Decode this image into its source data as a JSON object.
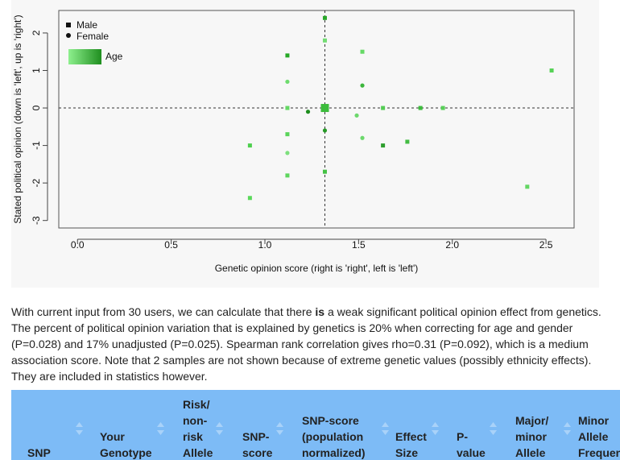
{
  "chart_data": {
    "type": "scatter",
    "xlabel": "Genetic opinion score (right is 'right', left is 'left')",
    "ylabel": "Stated political opinion (down is 'left', up is 'right')",
    "xlim": [
      -0.1,
      2.65
    ],
    "ylim": [
      -3.2,
      2.6
    ],
    "x_ticks": [
      0.0,
      0.5,
      1.0,
      1.5,
      2.0,
      2.5
    ],
    "x_tick_labels": [
      "0.0",
      "0.5",
      "1.0",
      "1.5",
      "2.0",
      "2.5"
    ],
    "y_ticks": [
      -3,
      -2,
      -1,
      0,
      1,
      2
    ],
    "y_tick_labels": [
      "-3",
      "-2",
      "-1",
      "0",
      "1",
      "2"
    ],
    "reference_lines": {
      "x": 1.32,
      "y": 0
    },
    "legend": {
      "position": "top-left",
      "items": [
        {
          "label": "Male",
          "symbol": "square"
        },
        {
          "label": "Female",
          "symbol": "circle"
        }
      ],
      "gradient_label": "Age"
    },
    "points": [
      {
        "x": 0.92,
        "y": -1.0,
        "shape": "square",
        "color": "#4ecf4e"
      },
      {
        "x": 0.92,
        "y": -2.4,
        "shape": "square",
        "color": "#5ad85a"
      },
      {
        "x": 1.12,
        "y": 1.4,
        "shape": "square",
        "color": "#27a927"
      },
      {
        "x": 1.12,
        "y": 0.7,
        "shape": "circle",
        "color": "#6edc6e"
      },
      {
        "x": 1.12,
        "y": 0.0,
        "shape": "square",
        "color": "#64d864"
      },
      {
        "x": 1.12,
        "y": -0.7,
        "shape": "square",
        "color": "#5ad45a"
      },
      {
        "x": 1.12,
        "y": -1.2,
        "shape": "circle",
        "color": "#7ee07e"
      },
      {
        "x": 1.12,
        "y": -1.8,
        "shape": "square",
        "color": "#5ed65e"
      },
      {
        "x": 1.23,
        "y": -0.1,
        "shape": "circle",
        "color": "#1f8e1f"
      },
      {
        "x": 1.32,
        "y": 2.4,
        "shape": "square",
        "color": "#2aa82a"
      },
      {
        "x": 1.32,
        "y": 1.8,
        "shape": "square",
        "color": "#72dc72"
      },
      {
        "x": 1.32,
        "y": 0.0,
        "shape": "square",
        "color": "#3cbc3c",
        "large": true
      },
      {
        "x": 1.32,
        "y": -0.6,
        "shape": "circle",
        "color": "#269a26"
      },
      {
        "x": 1.32,
        "y": -1.7,
        "shape": "square",
        "color": "#44c244"
      },
      {
        "x": 1.49,
        "y": -0.2,
        "shape": "circle",
        "color": "#6cd86c"
      },
      {
        "x": 1.52,
        "y": 1.5,
        "shape": "square",
        "color": "#66da66"
      },
      {
        "x": 1.52,
        "y": 0.6,
        "shape": "circle",
        "color": "#3cb63c"
      },
      {
        "x": 1.52,
        "y": -0.8,
        "shape": "circle",
        "color": "#6cd86c"
      },
      {
        "x": 1.63,
        "y": 0.0,
        "shape": "square",
        "color": "#54cc54"
      },
      {
        "x": 1.63,
        "y": -1.0,
        "shape": "square",
        "color": "#2e9e2e"
      },
      {
        "x": 1.76,
        "y": -0.9,
        "shape": "square",
        "color": "#44bc44"
      },
      {
        "x": 1.83,
        "y": 0.0,
        "shape": "square",
        "color": "#3cbc3c"
      },
      {
        "x": 1.95,
        "y": 0.0,
        "shape": "square",
        "color": "#58d058"
      },
      {
        "x": 2.4,
        "y": -2.1,
        "shape": "square",
        "color": "#64d664"
      },
      {
        "x": 2.53,
        "y": 1.0,
        "shape": "square",
        "color": "#56d256"
      }
    ]
  },
  "result_text": {
    "before": "With current input from 30 users, we can calculate that there ",
    "emphasis": "is",
    "after": " a weak significant political opinion effect from genetics. The percent of political opinion variation that is explained by genetics is 20% when correcting for age and gender (P=0.028) and 17% unadjusted (P=0.025). Spearman rank correlation gives rho=0.31 (P=0.092), which is a medium association score. Note that 2 samples are not shown because of extreme genetic values (possibly ethnicity effects). They are included in statistics however."
  },
  "table": {
    "columns": [
      "SNP",
      "Your Genotype",
      "Risk/ non-risk Allele",
      "SNP-score",
      "SNP-score (population normalized)",
      "Effect Size",
      "P-value",
      "Major/ minor Allele",
      "Minor Allele Frequency"
    ],
    "header_display": [
      "\n\n\nSNP",
      "\n\nYour\nGenotype",
      "Risk/\nnon-\nrisk\nAllele",
      "\n\nSNP-\nscore",
      "\nSNP-score\n(population\nnormalized)",
      "\n\nEffect\nSize",
      "\n\nP-\nvalue",
      "\nMajor/\nminor\nAllele",
      "\nMinor\nAllele\nFrequency"
    ],
    "header_color": "#7dbbf6"
  },
  "colors": {
    "axis": "#444444",
    "reference_line": "#333333",
    "age_gradient": [
      "#8ef08e",
      "#1f8e1f"
    ]
  }
}
